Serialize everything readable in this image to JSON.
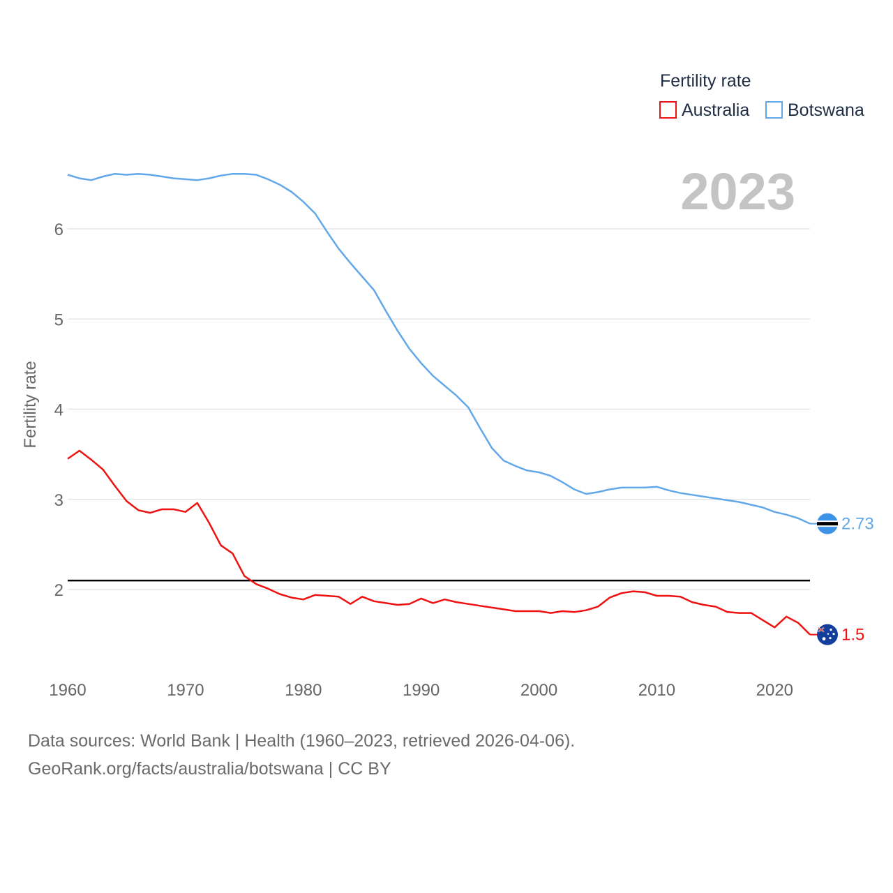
{
  "chart_data": {
    "type": "line",
    "title": "",
    "current_year": "2023",
    "ylabel": "Fertility rate",
    "xlabel": "",
    "xlim": [
      1960,
      2023
    ],
    "ylim": [
      1.2,
      6.9
    ],
    "x_ticks": [
      1960,
      1970,
      1980,
      1990,
      2000,
      2010,
      2020
    ],
    "y_ticks": [
      2,
      3,
      4,
      5,
      6
    ],
    "reference_line": {
      "value": 2.1,
      "color": "#000000"
    },
    "legend": {
      "title": "Fertility rate",
      "position": "top-right",
      "entries": [
        {
          "name": "Australia",
          "color": "#ee1111"
        },
        {
          "name": "Botswana",
          "color": "#62a8e8"
        }
      ]
    },
    "series": [
      {
        "name": "Australia",
        "color": "#ee1111",
        "end_label": "1.5",
        "flag_icon": "australia-flag-icon",
        "x": [
          1960,
          1961,
          1962,
          1963,
          1964,
          1965,
          1966,
          1967,
          1968,
          1969,
          1970,
          1971,
          1972,
          1973,
          1974,
          1975,
          1976,
          1977,
          1978,
          1979,
          1980,
          1981,
          1982,
          1983,
          1984,
          1985,
          1986,
          1987,
          1988,
          1989,
          1990,
          1991,
          1992,
          1993,
          1994,
          1995,
          1996,
          1997,
          1998,
          1999,
          2000,
          2001,
          2002,
          2003,
          2004,
          2005,
          2006,
          2007,
          2008,
          2009,
          2010,
          2011,
          2012,
          2013,
          2014,
          2015,
          2016,
          2017,
          2018,
          2019,
          2020,
          2021,
          2022,
          2023
        ],
        "values": [
          3.45,
          3.54,
          3.44,
          3.33,
          3.15,
          2.98,
          2.88,
          2.85,
          2.89,
          2.89,
          2.86,
          2.96,
          2.74,
          2.49,
          2.4,
          2.15,
          2.06,
          2.01,
          1.95,
          1.91,
          1.89,
          1.94,
          1.93,
          1.92,
          1.84,
          1.92,
          1.87,
          1.85,
          1.83,
          1.84,
          1.9,
          1.85,
          1.89,
          1.86,
          1.84,
          1.82,
          1.8,
          1.78,
          1.76,
          1.76,
          1.76,
          1.74,
          1.76,
          1.75,
          1.77,
          1.81,
          1.91,
          1.96,
          1.98,
          1.97,
          1.93,
          1.93,
          1.92,
          1.86,
          1.83,
          1.81,
          1.75,
          1.74,
          1.74,
          1.66,
          1.58,
          1.7,
          1.63,
          1.5
        ]
      },
      {
        "name": "Botswana",
        "color": "#62a8e8",
        "end_label": "2.73",
        "flag_icon": "botswana-flag-icon",
        "x": [
          1960,
          1961,
          1962,
          1963,
          1964,
          1965,
          1966,
          1967,
          1968,
          1969,
          1970,
          1971,
          1972,
          1973,
          1974,
          1975,
          1976,
          1977,
          1978,
          1979,
          1980,
          1981,
          1982,
          1983,
          1984,
          1985,
          1986,
          1987,
          1988,
          1989,
          1990,
          1991,
          1992,
          1993,
          1994,
          1995,
          1996,
          1997,
          1998,
          1999,
          2000,
          2001,
          2002,
          2003,
          2004,
          2005,
          2006,
          2007,
          2008,
          2009,
          2010,
          2011,
          2012,
          2013,
          2014,
          2015,
          2016,
          2017,
          2018,
          2019,
          2020,
          2021,
          2022,
          2023
        ],
        "values": [
          6.6,
          6.56,
          6.54,
          6.58,
          6.61,
          6.6,
          6.61,
          6.6,
          6.58,
          6.56,
          6.55,
          6.54,
          6.56,
          6.59,
          6.61,
          6.61,
          6.6,
          6.55,
          6.49,
          6.41,
          6.3,
          6.17,
          5.97,
          5.78,
          5.62,
          5.47,
          5.32,
          5.09,
          4.87,
          4.67,
          4.51,
          4.37,
          4.26,
          4.15,
          4.02,
          3.79,
          3.57,
          3.43,
          3.37,
          3.32,
          3.3,
          3.26,
          3.19,
          3.11,
          3.06,
          3.08,
          3.11,
          3.13,
          3.13,
          3.13,
          3.14,
          3.1,
          3.07,
          3.05,
          3.03,
          3.01,
          2.99,
          2.97,
          2.94,
          2.91,
          2.86,
          2.83,
          2.79,
          2.73
        ]
      }
    ]
  },
  "footer": {
    "line1": "Data sources: World Bank | Health (1960–2023, retrieved 2026-04-06).",
    "line2": "GeoRank.org/facts/australia/botswana | CC BY"
  }
}
